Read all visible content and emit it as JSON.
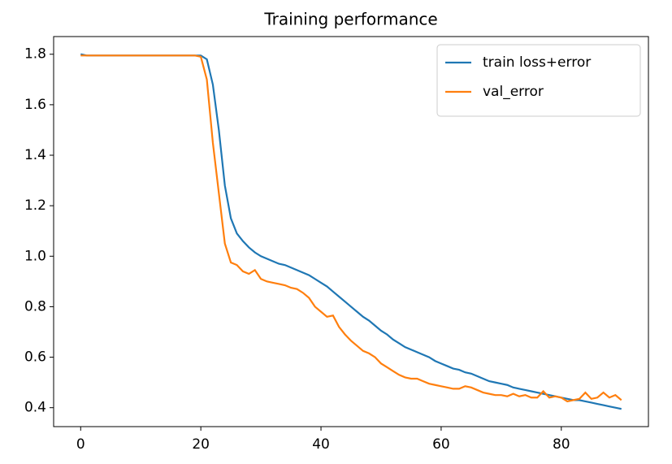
{
  "chart_data": {
    "type": "line",
    "title": "Training performance",
    "x": [
      0,
      1,
      2,
      3,
      4,
      5,
      6,
      7,
      8,
      9,
      10,
      11,
      12,
      13,
      14,
      15,
      16,
      17,
      18,
      19,
      20,
      21,
      22,
      23,
      24,
      25,
      26,
      27,
      28,
      29,
      30,
      31,
      32,
      33,
      34,
      35,
      36,
      37,
      38,
      39,
      40,
      41,
      42,
      43,
      44,
      45,
      46,
      47,
      48,
      49,
      50,
      51,
      52,
      53,
      54,
      55,
      56,
      57,
      58,
      59,
      60,
      61,
      62,
      63,
      64,
      65,
      66,
      67,
      68,
      69,
      70,
      71,
      72,
      73,
      74,
      75,
      76,
      77,
      78,
      79,
      80,
      81,
      82,
      83,
      84,
      85,
      86,
      87,
      88,
      89,
      90
    ],
    "series": [
      {
        "name": "train loss+error",
        "color": "#1f77b4",
        "values": [
          1.8,
          1.795,
          1.795,
          1.795,
          1.795,
          1.795,
          1.795,
          1.795,
          1.795,
          1.795,
          1.795,
          1.795,
          1.795,
          1.795,
          1.795,
          1.795,
          1.795,
          1.795,
          1.795,
          1.795,
          1.795,
          1.78,
          1.68,
          1.5,
          1.28,
          1.15,
          1.09,
          1.06,
          1.035,
          1.015,
          1.0,
          0.99,
          0.98,
          0.97,
          0.965,
          0.955,
          0.945,
          0.935,
          0.925,
          0.91,
          0.895,
          0.88,
          0.86,
          0.84,
          0.82,
          0.8,
          0.78,
          0.76,
          0.745,
          0.725,
          0.705,
          0.69,
          0.67,
          0.655,
          0.64,
          0.63,
          0.62,
          0.61,
          0.6,
          0.585,
          0.575,
          0.565,
          0.555,
          0.55,
          0.54,
          0.535,
          0.525,
          0.515,
          0.505,
          0.5,
          0.495,
          0.49,
          0.48,
          0.475,
          0.47,
          0.465,
          0.46,
          0.455,
          0.45,
          0.445,
          0.44,
          0.435,
          0.43,
          0.43,
          0.425,
          0.42,
          0.415,
          0.41,
          0.405,
          0.4,
          0.395
        ]
      },
      {
        "name": "val_error",
        "color": "#ff7f0e",
        "values": [
          1.795,
          1.795,
          1.795,
          1.795,
          1.795,
          1.795,
          1.795,
          1.795,
          1.795,
          1.795,
          1.795,
          1.795,
          1.795,
          1.795,
          1.795,
          1.795,
          1.795,
          1.795,
          1.795,
          1.795,
          1.79,
          1.7,
          1.45,
          1.25,
          1.05,
          0.975,
          0.965,
          0.94,
          0.93,
          0.945,
          0.91,
          0.9,
          0.895,
          0.89,
          0.885,
          0.875,
          0.87,
          0.855,
          0.835,
          0.8,
          0.78,
          0.76,
          0.765,
          0.72,
          0.69,
          0.665,
          0.645,
          0.625,
          0.615,
          0.6,
          0.575,
          0.56,
          0.545,
          0.53,
          0.52,
          0.515,
          0.515,
          0.505,
          0.495,
          0.49,
          0.485,
          0.48,
          0.475,
          0.475,
          0.485,
          0.48,
          0.47,
          0.46,
          0.455,
          0.45,
          0.45,
          0.445,
          0.455,
          0.445,
          0.45,
          0.44,
          0.44,
          0.465,
          0.44,
          0.445,
          0.44,
          0.425,
          0.43,
          0.435,
          0.46,
          0.435,
          0.44,
          0.46,
          0.44,
          0.45,
          0.43
        ]
      }
    ],
    "xlim": [
      -4.5,
      94.5
    ],
    "ylim": [
      0.325,
      1.87
    ],
    "xticks": [
      0,
      20,
      40,
      60,
      80
    ],
    "yticks": [
      0.4,
      0.6,
      0.8,
      {
        "value": 1,
        "label": "1.0"
      },
      1.2,
      1.4,
      1.6,
      1.8
    ],
    "grid": false,
    "legend": "upper right"
  }
}
